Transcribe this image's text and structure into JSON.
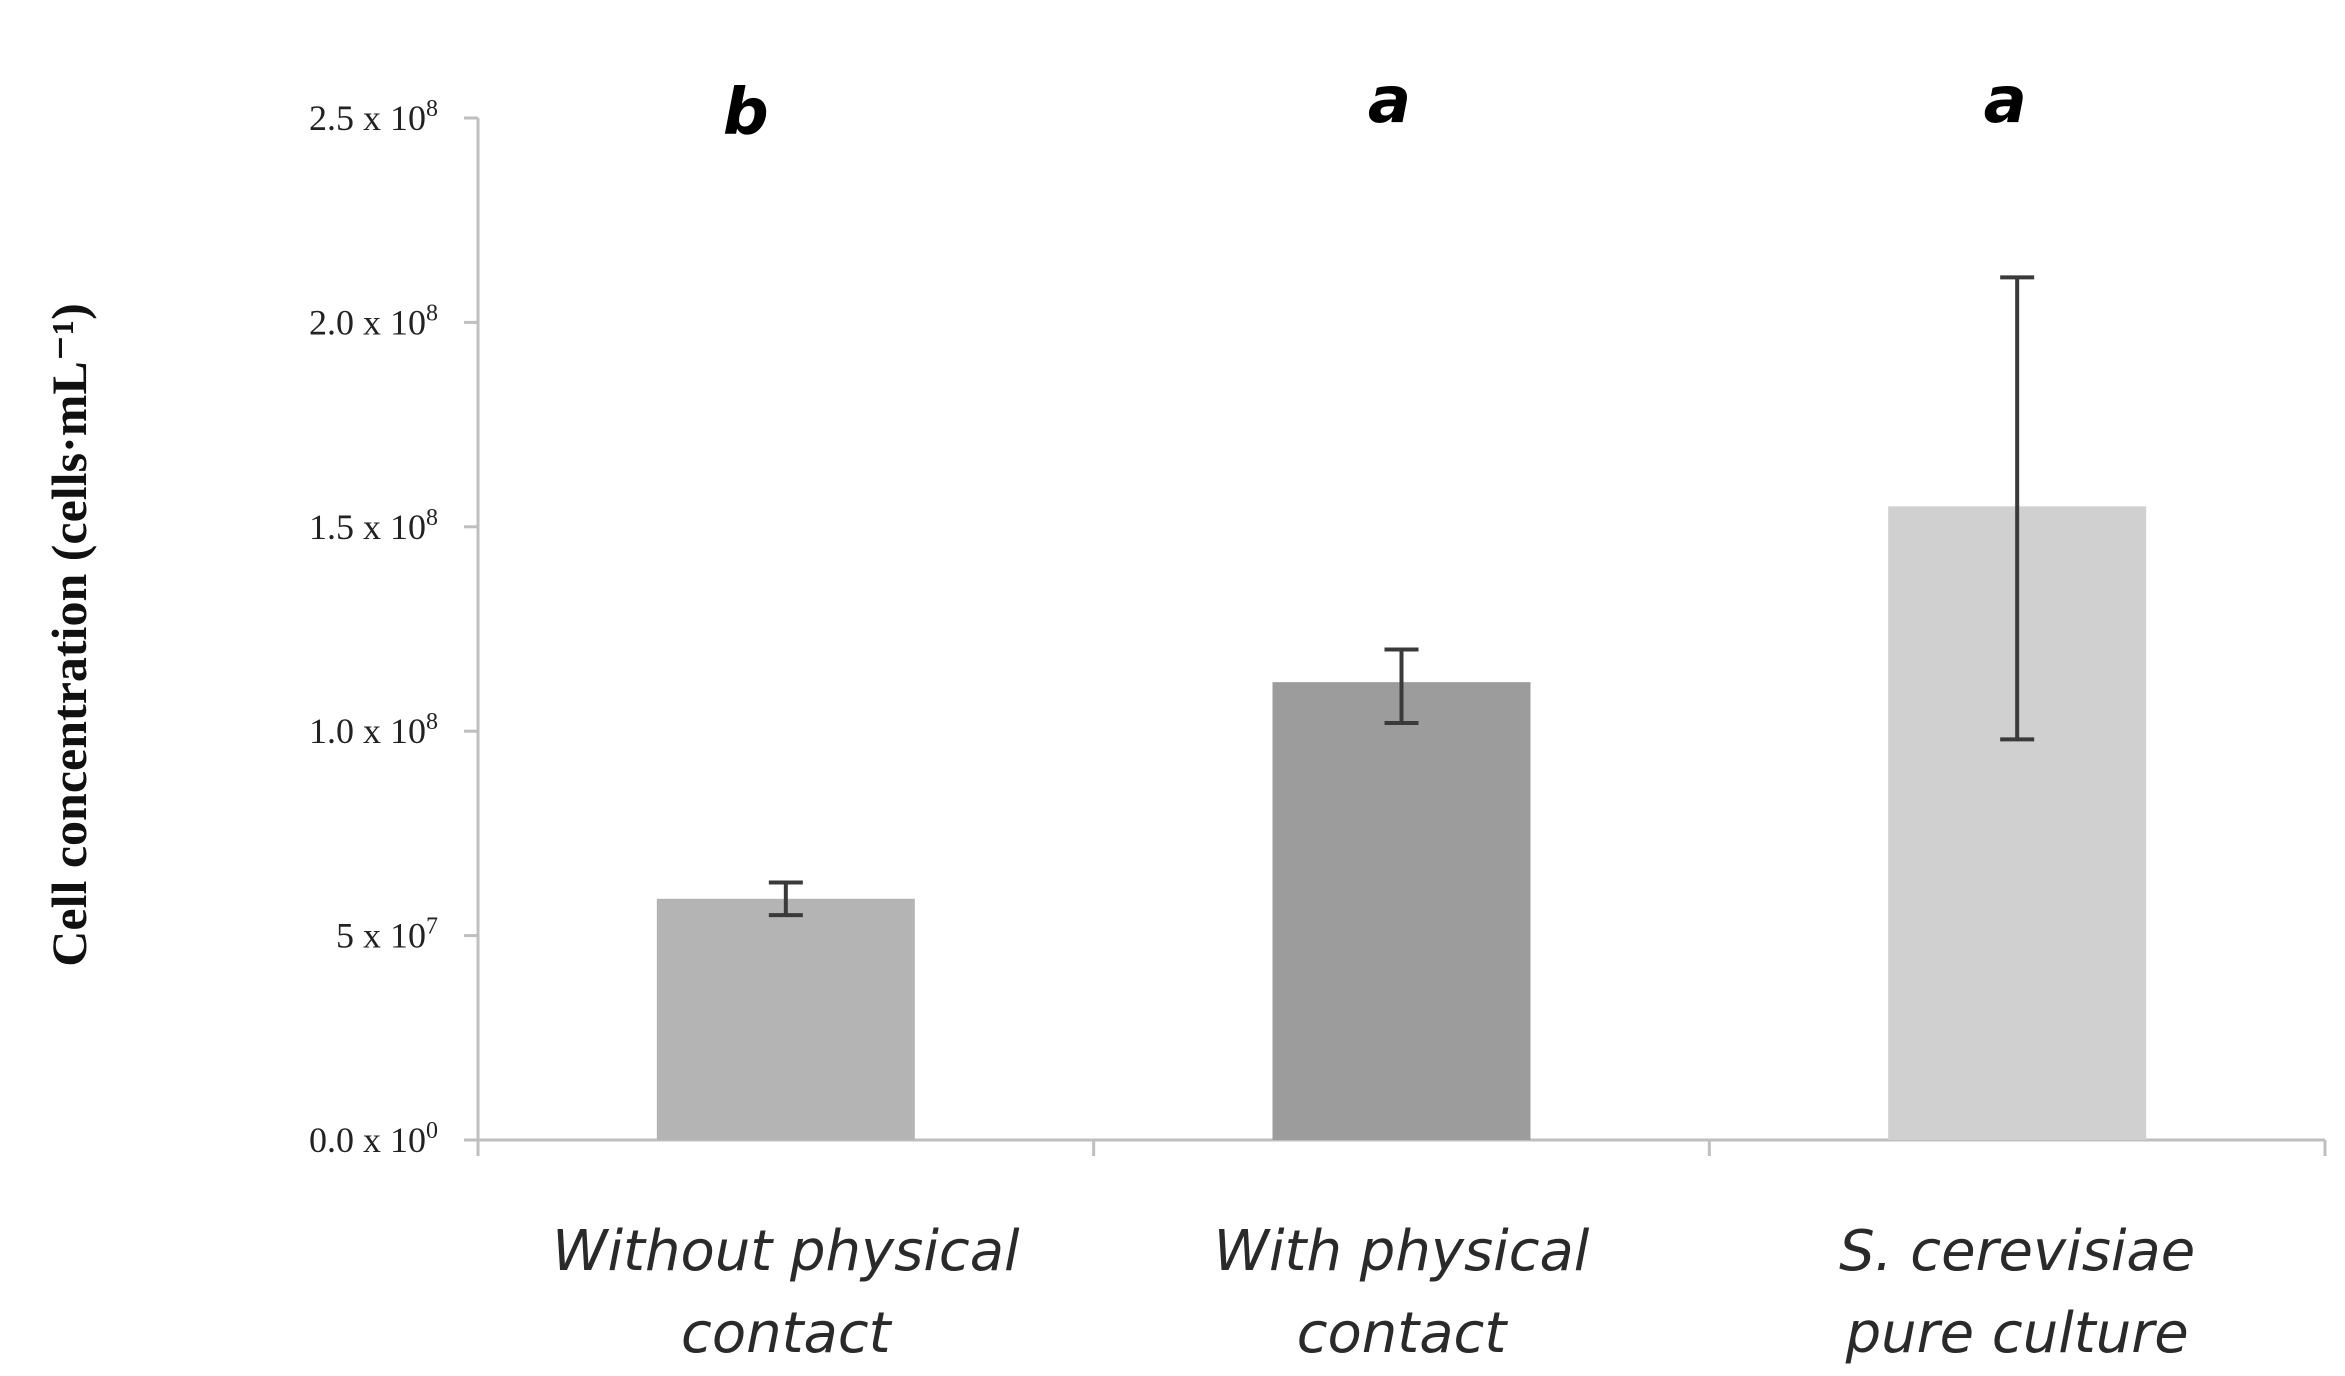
{
  "chart_data": {
    "type": "bar",
    "title": "",
    "xlabel": "",
    "ylabel": "Cell concentration (cells·mL⁻¹)",
    "ylim": [
      0,
      250000000
    ],
    "yticks": [
      {
        "value": 0,
        "mantissa": "0.0",
        "exp": "0"
      },
      {
        "value": 50000000,
        "mantissa": "5",
        "exp": "7"
      },
      {
        "value": 100000000,
        "mantissa": "1.0",
        "exp": "8"
      },
      {
        "value": 150000000,
        "mantissa": "1.5",
        "exp": "8"
      },
      {
        "value": 200000000,
        "mantissa": "2.0",
        "exp": "8"
      },
      {
        "value": 250000000,
        "mantissa": "2.5",
        "exp": "8"
      }
    ],
    "categories": [
      {
        "line1": "Without physical",
        "line2": "contact"
      },
      {
        "line1": "With physical",
        "line2": "contact"
      },
      {
        "line1": "S. cerevisiae",
        "line2": "pure culture"
      }
    ],
    "values": [
      59000000,
      112000000,
      155000000
    ],
    "error_low": [
      55000000,
      102000000,
      98000000
    ],
    "error_high": [
      63000000,
      120000000,
      211000000
    ],
    "significance": [
      "b",
      "a",
      "a"
    ],
    "bar_colors": [
      "#b4b4b4",
      "#9c9c9c",
      "#d0d0d0"
    ],
    "axis_color": "#bfbfbf",
    "error_color": "#3a3a3a",
    "grid": false
  }
}
